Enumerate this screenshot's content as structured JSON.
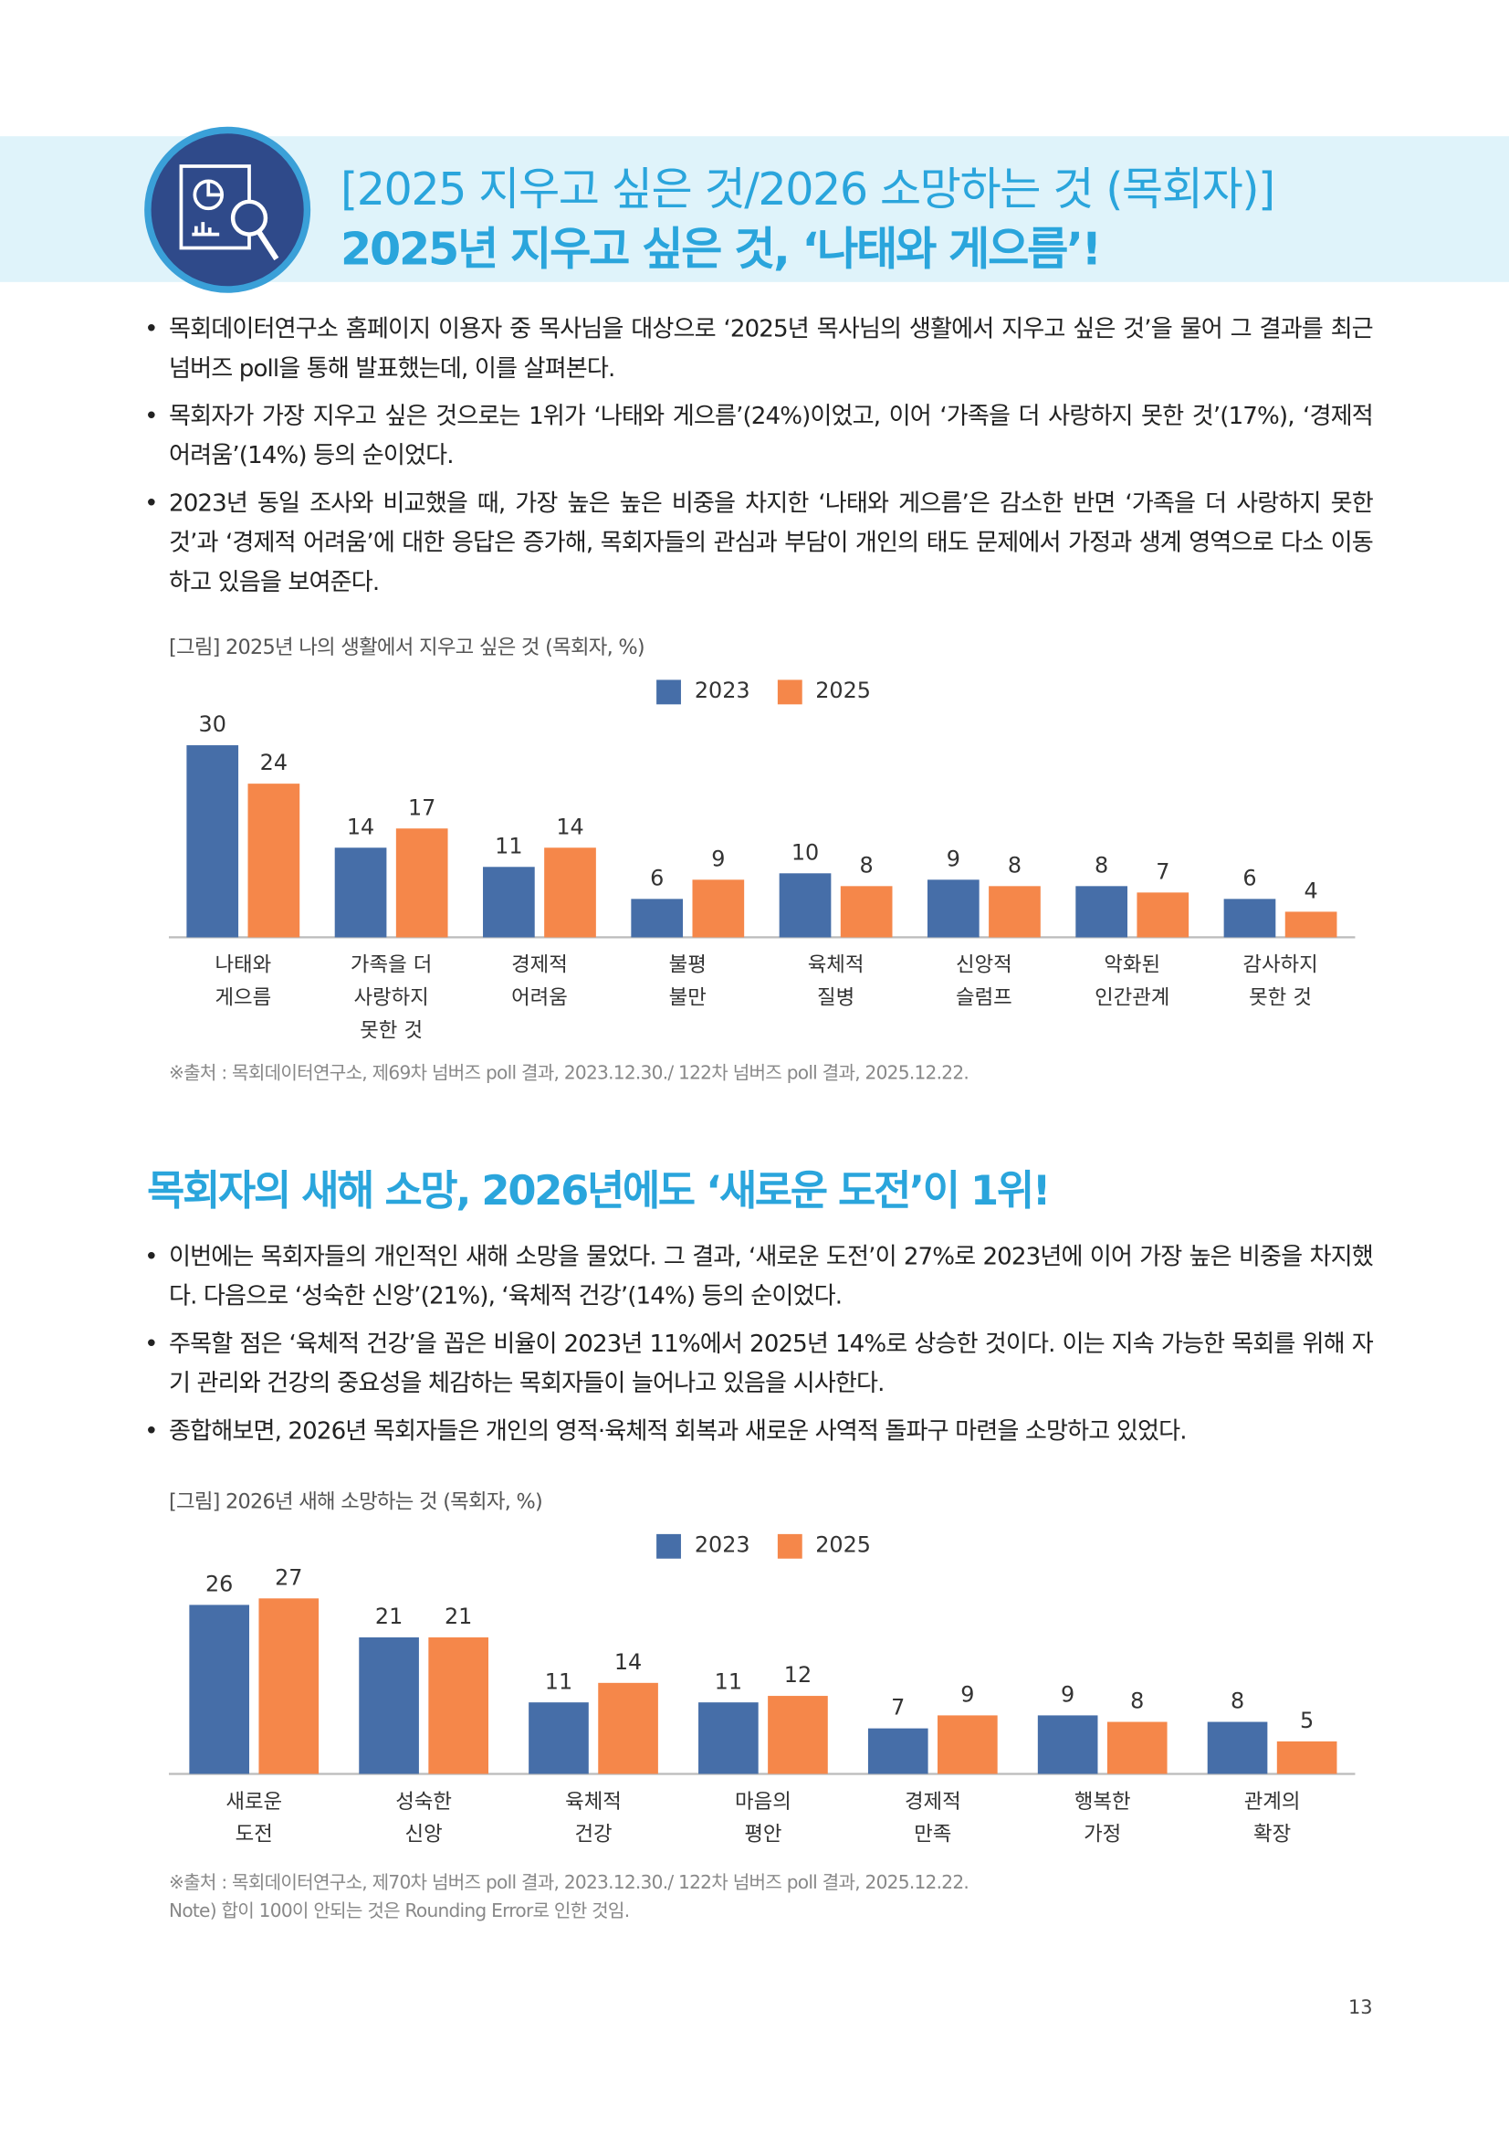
{
  "header": {
    "title_line1": "[2025 지우고 싶은 것/2026 소망하는 것 (목회자)]",
    "title_line2": "2025년 지우고 싶은 것, ‘나태와 게으름’!",
    "icon": "chart-magnifier-icon"
  },
  "section1": {
    "bullets": [
      "목회데이터연구소 홈페이지 이용자 중 목사님을 대상으로 ‘2025년 목사님의 생활에서 지우고 싶은 것’을 물어 그 결과를 최근 넘버즈 poll을 통해 발표했는데, 이를 살펴본다.",
      "목회자가 가장 지우고 싶은 것으로는 1위가 ‘나태와 게으름’(24%)이었고, 이어 ‘가족을 더 사랑하지 못한 것’(17%), ‘경제적 어려움’(14%) 등의 순이었다.",
      "2023년 동일 조사와 비교했을 때, 가장 높은 높은 비중을 차지한 ‘나태와 게으름’은 감소한 반면 ‘가족을 더 사랑하지 못한 것’과 ‘경제적 어려움’에 대한 응답은 증가해, 목회자들의 관심과 부담이 개인의 태도 문제에서 가정과 생계 영역으로 다소 이동하고 있음을 보여준다."
    ],
    "caption": "[그림] 2025년 나의 생활에서 지우고 싶은 것 (목회자, %)",
    "source": "※출처 : 목회데이터연구소, 제69차 넘버즈 poll 결과, 2023.12.30./ 122차 넘버즈 poll 결과, 2025.12.22."
  },
  "section2": {
    "heading": "목회자의 새해 소망, 2026년에도 ‘새로운 도전’이 1위!",
    "bullets": [
      "이번에는 목회자들의 개인적인 새해 소망을 물었다. 그 결과, ‘새로운 도전’이 27%로 2023년에 이어 가장 높은 비중을 차지했다. 다음으로 ‘성숙한 신앙’(21%), ‘육체적 건강’(14%) 등의 순이었다.",
      "주목할 점은 ‘육체적 건강’을 꼽은 비율이 2023년 11%에서 2025년 14%로 상승한 것이다. 이는 지속 가능한 목회를 위해 자기 관리와 건강의 중요성을 체감하는 목회자들이 늘어나고 있음을 시사한다.",
      "종합해보면, 2026년 목회자들은 개인의 영적·육체적 회복과 새로운 사역적 돌파구 마련을 소망하고 있었다."
    ],
    "caption": "[그림] 2026년 새해 소망하는 것 (목회자, %)",
    "source": "※출처 : 목회데이터연구소, 제70차 넘버즈 poll 결과, 2023.12.30./ 122차 넘버즈 poll 결과, 2025.12.22.",
    "note": "Note) 합이 100이 안되는 것은 Rounding Error로 인한 것임."
  },
  "page_number": "13",
  "colors": {
    "series_2023": "#466ea8",
    "series_2025": "#f5874a",
    "accent": "#2aa5dc",
    "banner_bg": "#dff3fa"
  },
  "chart_data": [
    {
      "type": "bar",
      "title": "[그림] 2025년 나의 생활에서 지우고 싶은 것 (목회자, %)",
      "categories": [
        "나태와\n게으름",
        "가족을 더\n사랑하지\n못한 것",
        "경제적\n어려움",
        "불평\n불만",
        "육체적\n질병",
        "신앙적\n슬럼프",
        "악화된\n인간관계",
        "감사하지\n못한 것"
      ],
      "series": [
        {
          "name": "2023",
          "values": [
            30,
            14,
            11,
            6,
            10,
            9,
            8,
            6
          ]
        },
        {
          "name": "2025",
          "values": [
            24,
            17,
            14,
            9,
            8,
            8,
            7,
            4
          ]
        }
      ],
      "legend": "top-center",
      "grid": false,
      "ylim": [
        0,
        30
      ]
    },
    {
      "type": "bar",
      "title": "[그림] 2026년 새해 소망하는 것 (목회자, %)",
      "categories": [
        "새로운\n도전",
        "성숙한\n신앙",
        "육체적\n건강",
        "마음의\n평안",
        "경제적\n만족",
        "행복한\n가정",
        "관계의\n확장"
      ],
      "series": [
        {
          "name": "2023",
          "values": [
            26,
            21,
            11,
            11,
            7,
            9,
            8
          ]
        },
        {
          "name": "2025",
          "values": [
            27,
            21,
            14,
            12,
            9,
            8,
            5
          ]
        }
      ],
      "legend": "top-center",
      "grid": false,
      "ylim": [
        0,
        27
      ]
    }
  ]
}
